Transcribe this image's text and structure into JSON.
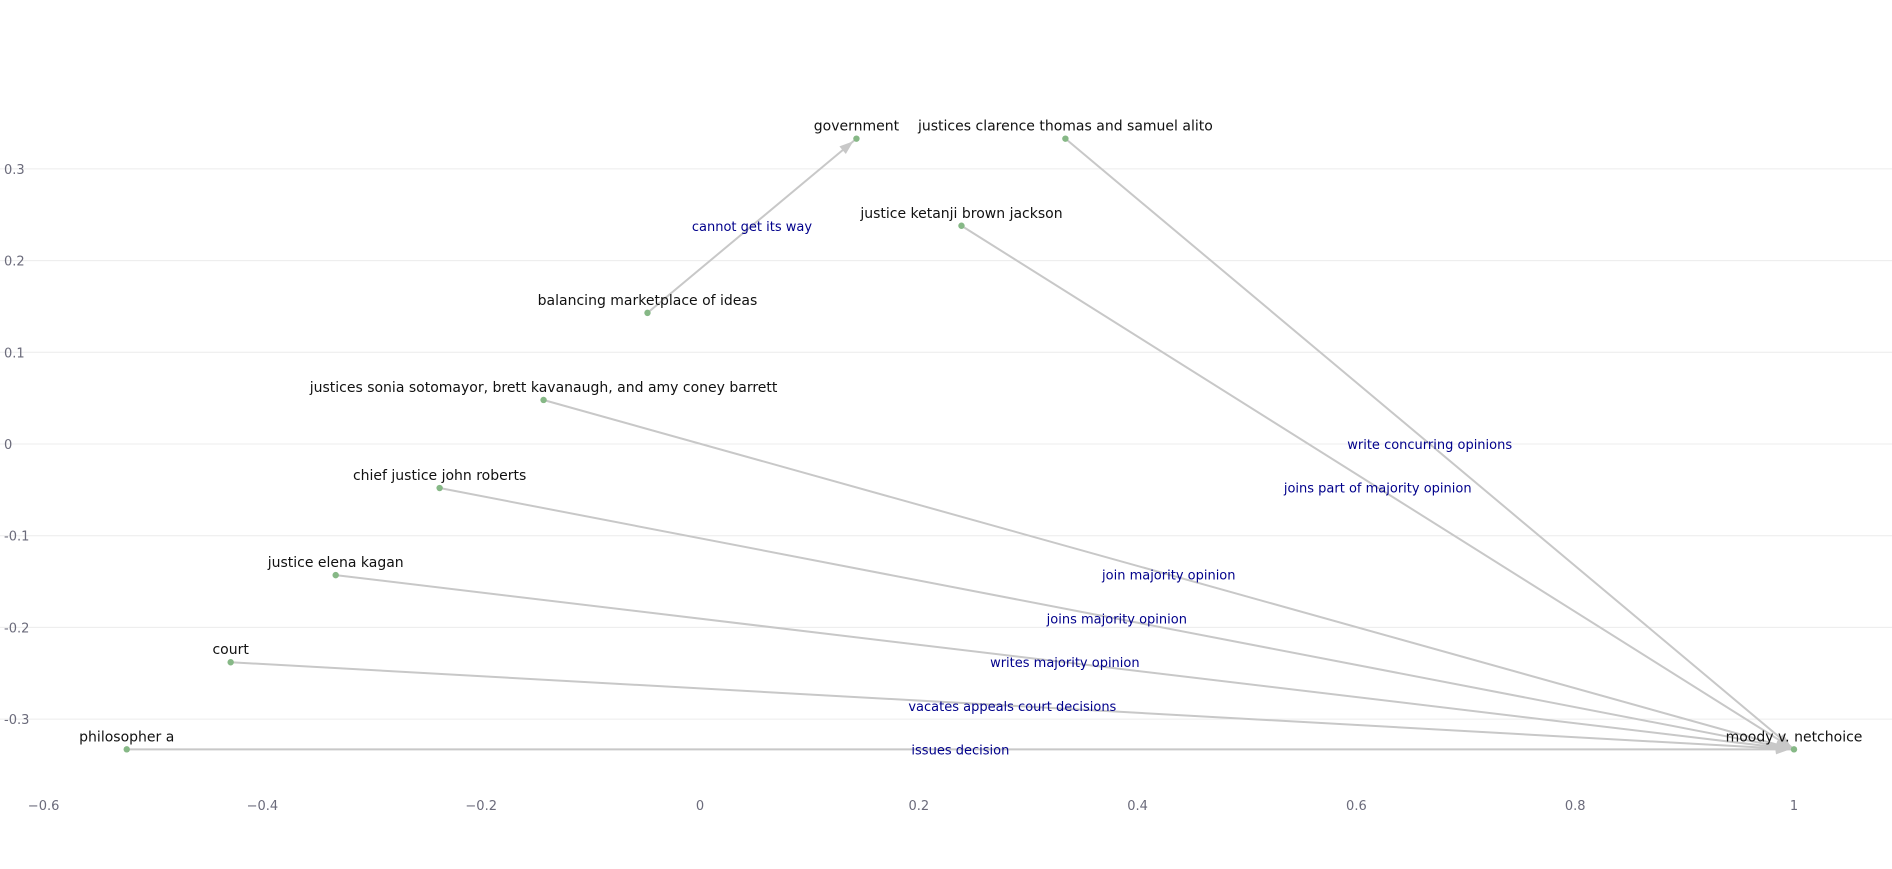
{
  "chart_data": {
    "type": "network",
    "xlim": [
      -0.6,
      1.1
    ],
    "ylim": [
      -0.37,
      0.36
    ],
    "x_ticks": [
      {
        "value": -0.6,
        "label": "−0.6"
      },
      {
        "value": -0.4,
        "label": "−0.4"
      },
      {
        "value": -0.2,
        "label": "−0.2"
      },
      {
        "value": 0,
        "label": "0"
      },
      {
        "value": 0.2,
        "label": "0.2"
      },
      {
        "value": 0.4,
        "label": "0.4"
      },
      {
        "value": 0.6,
        "label": "0.6"
      },
      {
        "value": 0.8,
        "label": "0.8"
      },
      {
        "value": 1,
        "label": "1"
      }
    ],
    "y_ticks": [
      {
        "value": 0.3,
        "label": "0.3"
      },
      {
        "value": 0.2,
        "label": "0.2"
      },
      {
        "value": 0.1,
        "label": "0.1"
      },
      {
        "value": 0,
        "label": "0"
      },
      {
        "value": -0.1,
        "label": "-0.1"
      },
      {
        "value": -0.2,
        "label": "-0.2"
      },
      {
        "value": -0.3,
        "label": "-0.3"
      }
    ],
    "grid": "horizontal",
    "nodes": [
      {
        "id": "government",
        "label": "government",
        "x": 0.143,
        "y": 0.333
      },
      {
        "id": "thomas_alito",
        "label": "justices clarence thomas and samuel alito",
        "x": 0.334,
        "y": 0.333
      },
      {
        "id": "jackson",
        "label": "justice ketanji brown jackson",
        "x": 0.239,
        "y": 0.238
      },
      {
        "id": "marketplace",
        "label": "balancing marketplace of ideas",
        "x": -0.048,
        "y": 0.143
      },
      {
        "id": "sotomayor",
        "label": "justices sonia sotomayor, brett kavanaugh, and amy coney barrett",
        "x": -0.143,
        "y": 0.048
      },
      {
        "id": "roberts",
        "label": "chief justice john roberts",
        "x": -0.238,
        "y": -0.048
      },
      {
        "id": "kagan",
        "label": "justice elena kagan",
        "x": -0.333,
        "y": -0.143
      },
      {
        "id": "court",
        "label": "court",
        "x": -0.429,
        "y": -0.238
      },
      {
        "id": "philosopher",
        "label": "philosopher a",
        "x": -0.524,
        "y": -0.333
      },
      {
        "id": "moody",
        "label": "moody v. netchoice",
        "x": 1.0,
        "y": -0.333
      }
    ],
    "edges": [
      {
        "source": "marketplace",
        "target": "government",
        "label": "cannot get its way"
      },
      {
        "source": "thomas_alito",
        "target": "moody",
        "label": "write concurring opinions"
      },
      {
        "source": "jackson",
        "target": "moody",
        "label": "joins part of majority opinion"
      },
      {
        "source": "sotomayor",
        "target": "moody",
        "label": "join majority opinion"
      },
      {
        "source": "roberts",
        "target": "moody",
        "label": "joins majority opinion"
      },
      {
        "source": "kagan",
        "target": "moody",
        "label": "writes majority opinion"
      },
      {
        "source": "court",
        "target": "moody",
        "label": "vacates appeals court decisions"
      },
      {
        "source": "philosopher",
        "target": "moody",
        "label": "issues decision"
      }
    ]
  }
}
